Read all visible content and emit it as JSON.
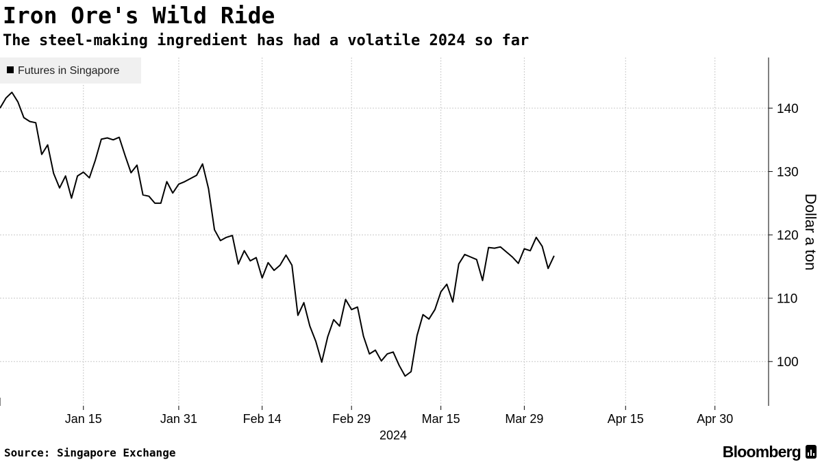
{
  "header": {
    "title": "Iron Ore's Wild Ride",
    "subtitle": "The steel-making ingredient has had a volatile 2024 so far"
  },
  "footer": {
    "source": "Source: Singapore Exchange",
    "brand": "Bloomberg"
  },
  "colors": {
    "line": "#000000",
    "grid": "#c8c8c8",
    "legend_bg": "#f0f0f0"
  },
  "chart_data": {
    "type": "line",
    "title": "Iron Ore's Wild Ride",
    "subtitle": "The steel-making ingredient has had a volatile 2024 so far",
    "ylabel": "Dollar a ton",
    "xlabel": "2024",
    "x_range_days": [
      0,
      129
    ],
    "ylim": [
      93,
      148
    ],
    "y_ticks": [
      100,
      110,
      120,
      130,
      140
    ],
    "x_ticks": [
      {
        "day": 14,
        "label": "Jan 15"
      },
      {
        "day": 30,
        "label": "Jan 31"
      },
      {
        "day": 44,
        "label": "Feb 14"
      },
      {
        "day": 59,
        "label": "Feb 29"
      },
      {
        "day": 74,
        "label": "Mar 15"
      },
      {
        "day": 88,
        "label": "Mar 29"
      },
      {
        "day": 105,
        "label": "Apr 15"
      },
      {
        "day": 120,
        "label": "Apr 30"
      }
    ],
    "x_year_label": {
      "day": 66,
      "label": "2024"
    },
    "grid": true,
    "legend_position": "top-left",
    "series": [
      {
        "name": "Futures in Singapore",
        "points": [
          [
            0,
            140
          ],
          [
            1,
            141.6
          ],
          [
            2,
            142.5
          ],
          [
            3,
            141
          ],
          [
            4,
            138.5
          ],
          [
            5,
            137.9
          ],
          [
            6,
            137.7
          ],
          [
            7,
            132.7
          ],
          [
            8,
            134.2
          ],
          [
            9,
            129.7
          ],
          [
            10,
            127.4
          ],
          [
            11,
            129.3
          ],
          [
            12,
            125.8
          ],
          [
            13,
            129.3
          ],
          [
            14,
            129.9
          ],
          [
            15,
            129
          ],
          [
            16,
            131.8
          ],
          [
            17,
            135.1
          ],
          [
            18,
            135.3
          ],
          [
            19,
            135
          ],
          [
            20,
            135.4
          ],
          [
            21,
            132.5
          ],
          [
            22,
            129.8
          ],
          [
            23,
            131
          ],
          [
            24,
            126.3
          ],
          [
            25,
            126.1
          ],
          [
            26,
            125
          ],
          [
            27,
            125
          ],
          [
            28,
            128.4
          ],
          [
            29,
            126.6
          ],
          [
            30,
            128
          ],
          [
            31,
            128.4
          ],
          [
            32,
            128.9
          ],
          [
            33,
            129.4
          ],
          [
            34,
            131.2
          ],
          [
            35,
            127.3
          ],
          [
            36,
            120.8
          ],
          [
            37,
            119.1
          ],
          [
            38,
            119.6
          ],
          [
            39,
            119.9
          ],
          [
            40,
            115.4
          ],
          [
            41,
            117.5
          ],
          [
            42,
            115.9
          ],
          [
            43,
            116.4
          ],
          [
            44,
            113.2
          ],
          [
            45,
            115.6
          ],
          [
            46,
            114.4
          ],
          [
            47,
            115.2
          ],
          [
            48,
            116.8
          ],
          [
            49,
            115.2
          ],
          [
            50,
            107.3
          ],
          [
            51,
            109.3
          ],
          [
            52,
            105.6
          ],
          [
            53,
            103.2
          ],
          [
            54,
            99.9
          ],
          [
            55,
            103.9
          ],
          [
            56,
            106.6
          ],
          [
            57,
            105.6
          ],
          [
            58,
            109.8
          ],
          [
            59,
            108.2
          ],
          [
            60,
            108.6
          ],
          [
            61,
            104
          ],
          [
            62,
            101.2
          ],
          [
            63,
            101.8
          ],
          [
            64,
            100.1
          ],
          [
            65,
            101.2
          ],
          [
            66,
            101.5
          ],
          [
            67,
            99.4
          ],
          [
            68,
            97.7
          ],
          [
            69,
            98.4
          ],
          [
            70,
            104.1
          ],
          [
            71,
            107.4
          ],
          [
            72,
            106.7
          ],
          [
            73,
            108.2
          ],
          [
            74,
            111
          ],
          [
            75,
            112.2
          ],
          [
            76,
            109.4
          ],
          [
            77,
            115.4
          ],
          [
            78,
            116.9
          ],
          [
            79,
            116.5
          ],
          [
            80,
            116.1
          ],
          [
            81,
            112.8
          ],
          [
            82,
            118
          ],
          [
            83,
            117.9
          ],
          [
            84,
            118.1
          ],
          [
            85,
            117.3
          ],
          [
            86,
            116.5
          ],
          [
            87,
            115.5
          ],
          [
            88,
            117.8
          ],
          [
            89,
            117.5
          ],
          [
            90,
            119.6
          ],
          [
            91,
            118.2
          ],
          [
            92,
            114.7
          ],
          [
            93,
            116.7
          ]
        ]
      }
    ]
  }
}
